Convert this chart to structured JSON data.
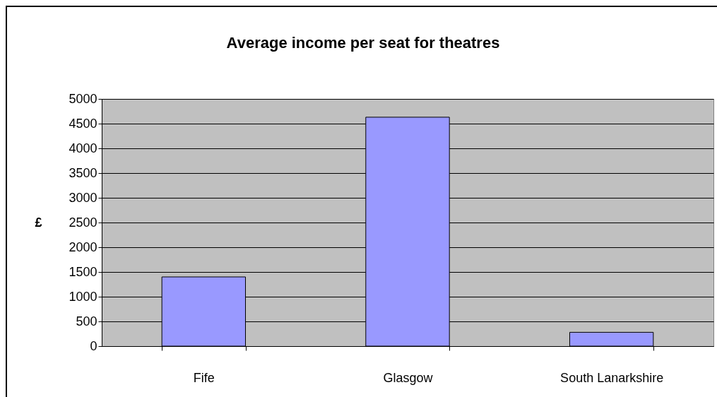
{
  "chart_data": {
    "type": "bar",
    "title": "Average income per seat for theatres",
    "ylabel": "£",
    "categories": [
      "Fife",
      "Glasgow",
      "South Lanarkshire"
    ],
    "values": [
      1400,
      4630,
      280
    ],
    "color": "#9999ff",
    "ylim": [
      0,
      5000
    ],
    "yticks": [
      0,
      500,
      1000,
      1500,
      2000,
      2500,
      3000,
      3500,
      4000,
      4500,
      5000
    ],
    "grid": "y"
  }
}
